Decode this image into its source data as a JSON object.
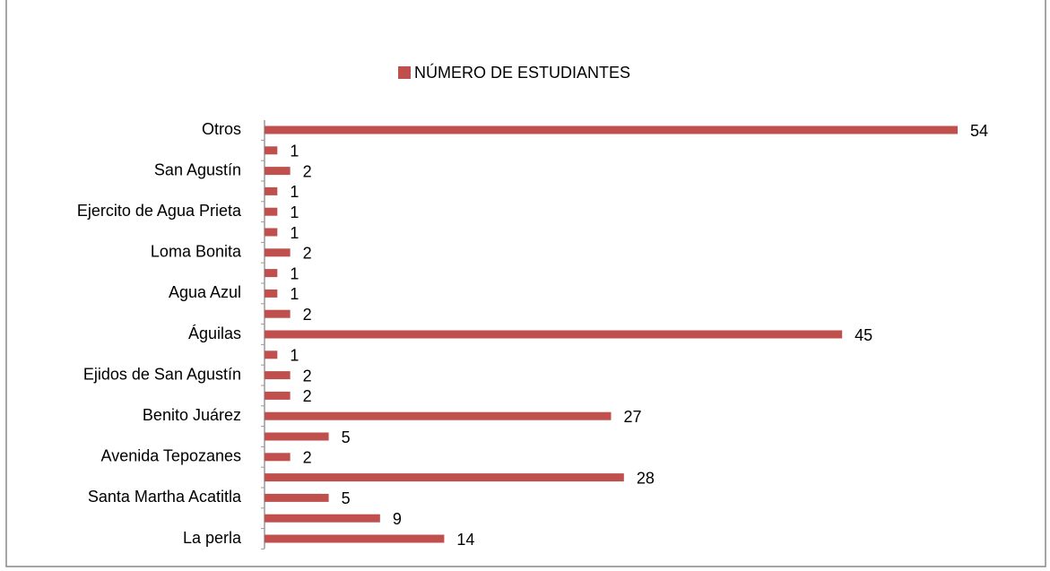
{
  "chart_data": {
    "type": "hbar",
    "legend": "NÚMERO DE ESTUDIANTES",
    "color": "#c0504d",
    "categories": [
      "La perla",
      null,
      "Santa Martha Acatitla",
      null,
      "Avenida Tepozanes",
      null,
      "Benito Juárez",
      null,
      "Ejidos de San Agustín",
      null,
      "Águilas",
      null,
      "Agua Azul",
      null,
      "Loma Bonita",
      null,
      "Ejercito de Agua Prieta",
      null,
      "San Agustín",
      null,
      "Otros"
    ],
    "values": [
      14,
      9,
      5,
      28,
      2,
      5,
      27,
      2,
      2,
      1,
      45,
      2,
      1,
      1,
      2,
      1,
      1,
      1,
      2,
      1,
      54
    ]
  }
}
